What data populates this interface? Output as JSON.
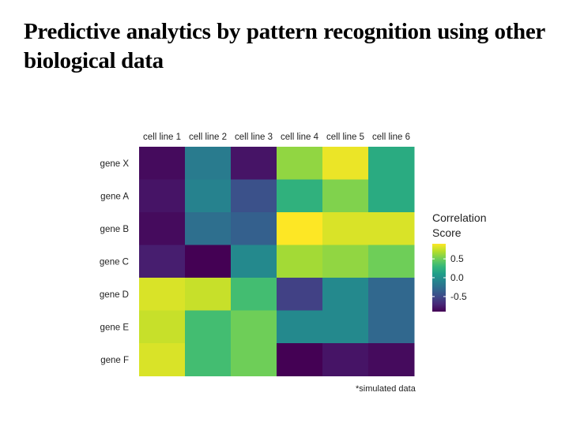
{
  "slide": {
    "title": "Predictive analytics by pattern recognition using other biological data",
    "footnote": "*simulated data"
  },
  "chart_data": {
    "type": "heatmap",
    "x_categories": [
      "cell line 1",
      "cell line 2",
      "cell line 3",
      "cell line 4",
      "cell line 5",
      "cell line 6"
    ],
    "y_categories": [
      "gene X",
      "gene A",
      "gene B",
      "gene C",
      "gene D",
      "gene E",
      "gene F"
    ],
    "values": [
      [
        -0.85,
        -0.15,
        -0.8,
        0.6,
        0.85,
        0.2
      ],
      [
        -0.8,
        -0.1,
        -0.45,
        0.25,
        0.55,
        0.2
      ],
      [
        -0.85,
        -0.25,
        -0.35,
        0.9,
        0.8,
        0.8
      ],
      [
        -0.75,
        -0.9,
        -0.05,
        0.65,
        0.6,
        0.5
      ],
      [
        0.8,
        0.75,
        0.35,
        -0.55,
        -0.05,
        -0.3
      ],
      [
        0.75,
        0.35,
        0.5,
        -0.05,
        -0.05,
        -0.3
      ],
      [
        0.8,
        0.35,
        0.5,
        -0.9,
        -0.8,
        -0.85
      ]
    ],
    "color_scale": "viridis",
    "value_range": [
      -0.9,
      0.9
    ],
    "legend": {
      "title": [
        "Correlation",
        "Score"
      ],
      "ticks": [
        0.5,
        0.0,
        -0.5
      ],
      "tick_labels": [
        "0.5",
        "0.0",
        "-0.5"
      ],
      "placement": "right"
    },
    "x_axis_position": "top"
  }
}
